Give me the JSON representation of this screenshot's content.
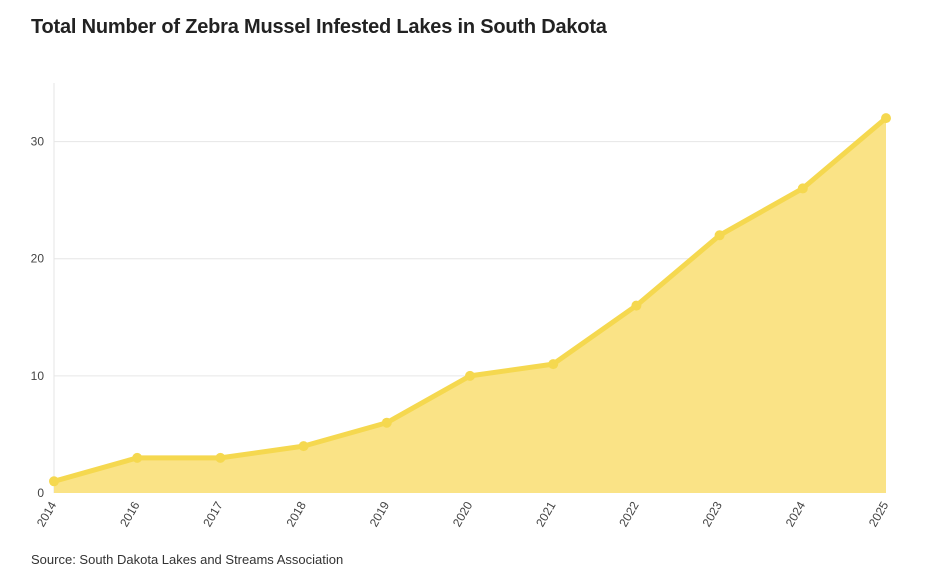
{
  "title": "Total Number of Zebra Mussel Infested Lakes in South Dakota",
  "source": "Source: South Dakota Lakes and Streams Association",
  "colors": {
    "line": "#f5d84f",
    "area": "#fae386",
    "grid": "#e6e6e6",
    "text": "#222222"
  },
  "chart_data": {
    "type": "area",
    "title": "Total Number of Zebra Mussel Infested Lakes in South Dakota",
    "xlabel": "",
    "ylabel": "",
    "categories": [
      "2014",
      "2016",
      "2017",
      "2018",
      "2019",
      "2020",
      "2021",
      "2022",
      "2023",
      "2024",
      "2025"
    ],
    "values": [
      1,
      3,
      3,
      4,
      6,
      10,
      11,
      16,
      22,
      26,
      32
    ],
    "ylim": [
      0,
      35
    ],
    "yticks": [
      0,
      10,
      20,
      30
    ],
    "grid": true,
    "legend": "none"
  }
}
